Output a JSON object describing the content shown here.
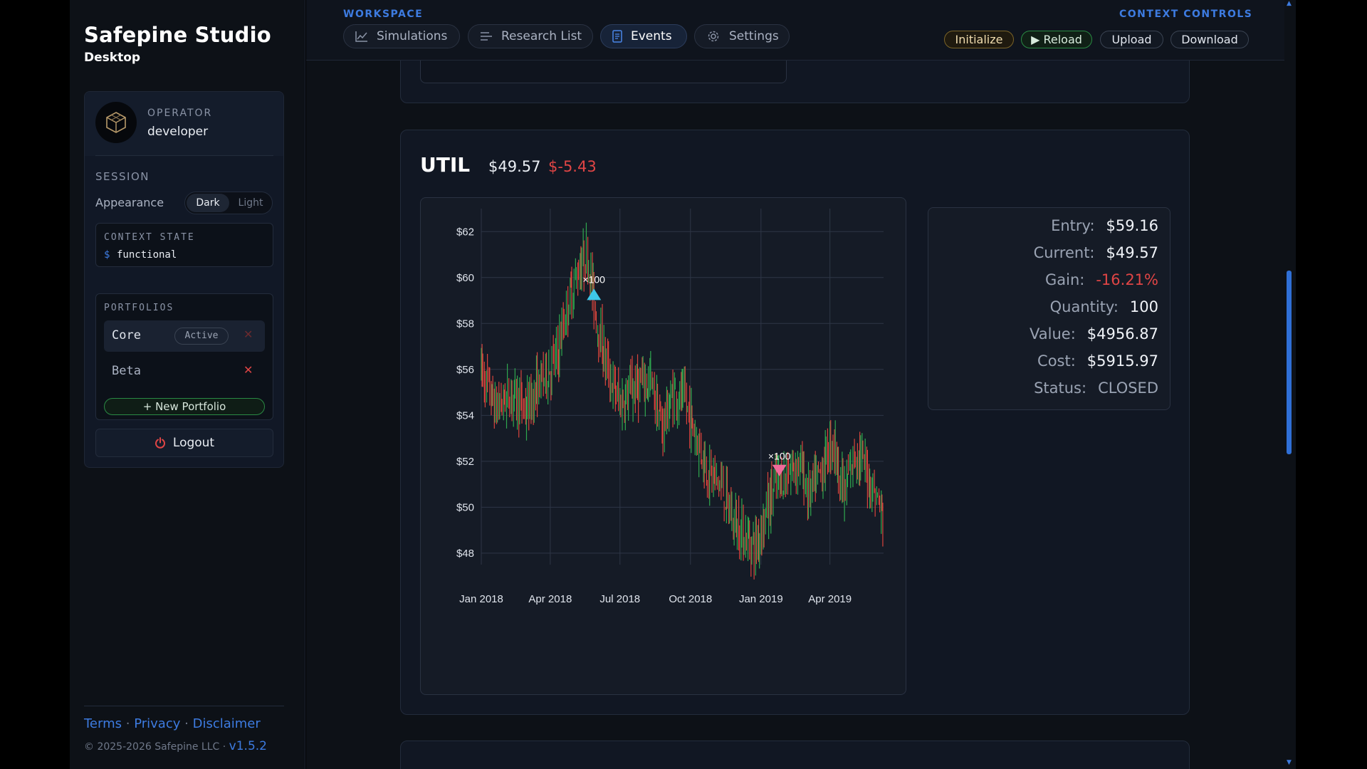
{
  "sidebar": {
    "brand_title": "Safepine Studio",
    "brand_sub": "Desktop",
    "operator_label": "OPERATOR",
    "operator_name": "developer",
    "session_label": "SESSION",
    "appearance_label": "Appearance",
    "theme_dark": "Dark",
    "theme_light": "Light",
    "context_label": "CONTEXT STATE",
    "context_prompt": "$",
    "context_value": "functional",
    "portfolios_label": "PORTFOLIOS",
    "portfolios": [
      {
        "name": "Core",
        "badge": "Active"
      },
      {
        "name": "Beta",
        "badge": ""
      }
    ],
    "remove_glyph": "✕",
    "new_portfolio": "+ New Portfolio",
    "logout": "Logout",
    "footer": {
      "terms": "Terms",
      "privacy": "Privacy",
      "disclaimer": "Disclaimer",
      "separator": "·",
      "copyright": "© 2025-2026 Safepine LLC ·",
      "version": "v1.5.2"
    }
  },
  "topbar": {
    "workspace_label": "WORKSPACE",
    "tabs": [
      {
        "label": "Simulations",
        "icon": "chart-line-icon"
      },
      {
        "label": "Research List",
        "icon": "list-icon"
      },
      {
        "label": "Events",
        "icon": "document-icon",
        "active": true
      },
      {
        "label": "Settings",
        "icon": "gear-icon"
      }
    ],
    "context_controls_label": "CONTEXT CONTROLS",
    "controls": {
      "initialize": "Initialize",
      "reload": "▶ Reload",
      "upload": "Upload",
      "download": "Download"
    }
  },
  "event": {
    "ticker": "UTIL",
    "price": "$49.57",
    "change": "$-5.43",
    "stats": [
      {
        "label": "Entry:",
        "value": "$59.16"
      },
      {
        "label": "Current:",
        "value": "$49.57"
      },
      {
        "label": "Gain:",
        "value": "-16.21%",
        "tone": "neg"
      },
      {
        "label": "Quantity:",
        "value": "100"
      },
      {
        "label": "Value:",
        "value": "$4956.87"
      },
      {
        "label": "Cost:",
        "value": "$5915.97"
      },
      {
        "label": "Status:",
        "value": "CLOSED",
        "tone": "muted"
      }
    ]
  },
  "colors": {
    "accent": "#3d7be0",
    "up": "#2fa84f",
    "down": "#d9443c",
    "buy_marker": "#3ec7e8",
    "sell_marker": "#f06a9a",
    "negative": "#e04545"
  },
  "chart_data": {
    "type": "candlestick",
    "x_tick_labels": [
      "Jan 2018",
      "Apr 2018",
      "Jul 2018",
      "Oct 2018",
      "Jan 2019",
      "Apr 2019"
    ],
    "y_tick_labels": [
      "$62",
      "$60",
      "$58",
      "$56",
      "$54",
      "$52",
      "$50",
      "$48"
    ],
    "ylim": [
      47.5,
      63
    ],
    "xlim": [
      "2018-01-01",
      "2019-06-10"
    ],
    "grid": true,
    "series": [
      {
        "x": [
          "2018-01-01",
          "2018-01-20",
          "2018-02-10",
          "2018-03-01",
          "2018-03-20",
          "2018-04-10",
          "2018-04-25",
          "2018-05-10",
          "2018-05-20",
          "2018-06-01",
          "2018-06-15",
          "2018-07-01",
          "2018-07-20",
          "2018-08-10",
          "2018-08-25",
          "2018-09-10",
          "2018-09-25",
          "2018-10-10",
          "2018-10-25",
          "2018-11-10",
          "2018-11-25",
          "2018-12-10",
          "2018-12-25",
          "2019-01-05",
          "2019-01-20",
          "2019-02-05",
          "2019-02-20",
          "2019-03-05",
          "2019-03-20",
          "2019-04-05",
          "2019-04-20",
          "2019-05-05",
          "2019-05-20",
          "2019-06-01",
          "2019-06-10"
        ],
        "y": [
          56,
          54.3,
          55,
          54.2,
          55.5,
          56.5,
          59,
          60.5,
          61,
          58.2,
          56,
          54.5,
          55.2,
          55.5,
          53.5,
          55,
          54.5,
          53,
          51.5,
          51,
          49.5,
          48.8,
          48.3,
          49.5,
          51,
          51.5,
          52,
          50.5,
          51.5,
          53,
          50.5,
          52.5,
          51.5,
          50.5,
          49.5
        ]
      }
    ],
    "markers": [
      {
        "x": "2018-05-28",
        "y": 59.3,
        "kind": "buy",
        "label": "×100"
      },
      {
        "x": "2019-01-25",
        "y": 51.6,
        "kind": "sell",
        "label": "×100"
      }
    ]
  }
}
